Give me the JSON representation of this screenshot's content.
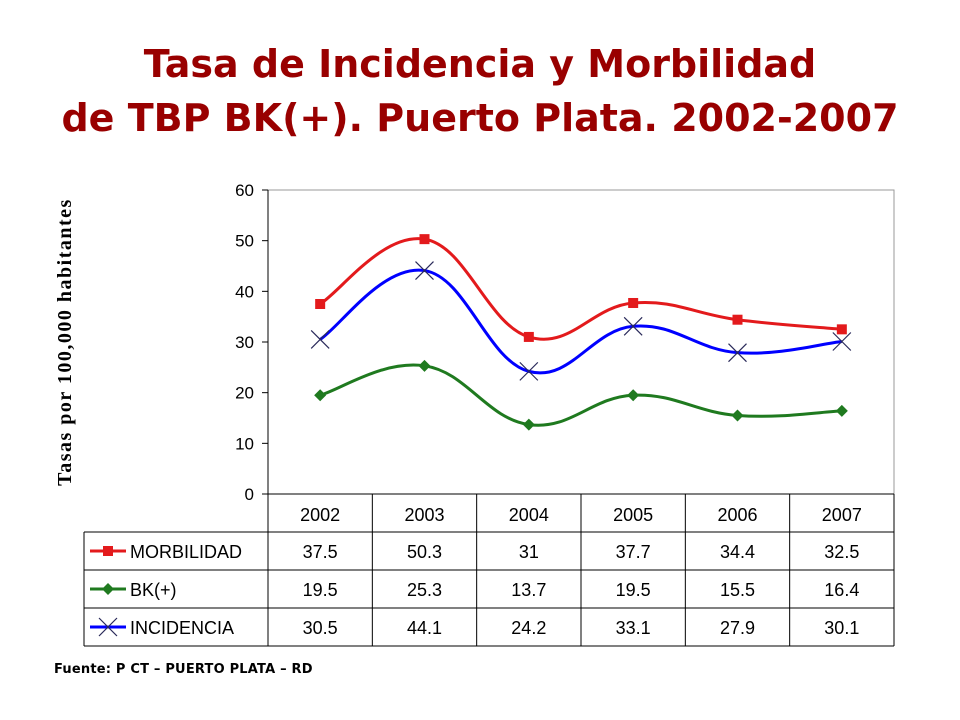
{
  "title_line1": "Tasa de Incidencia y Morbilidad",
  "title_line2": "de TBP BK(+). Puerto Plata. 2002-2007",
  "source": "Fuente: P CT – PUERTO  PLATA – RD",
  "chart_data": {
    "type": "line",
    "ylabel": "Tasas por 100,000 habitantes",
    "xlabel": "",
    "ylim": [
      0,
      60
    ],
    "yticks": [
      0,
      10,
      20,
      30,
      40,
      50,
      60
    ],
    "grid": false,
    "categories": [
      "2002",
      "2003",
      "2004",
      "2005",
      "2006",
      "2007"
    ],
    "series": [
      {
        "name": "MORBILIDAD",
        "values": [
          37.5,
          50.3,
          31,
          37.7,
          34.4,
          32.5
        ],
        "value_labels": [
          "37.5",
          "50.3",
          "31",
          "37.7",
          "34.4",
          "32.5"
        ],
        "color": "#e31a1c",
        "marker": "square"
      },
      {
        "name": "BK(+)",
        "values": [
          19.5,
          25.3,
          13.7,
          19.5,
          15.5,
          16.4
        ],
        "value_labels": [
          "19.5",
          "25.3",
          "13.7",
          "19.5",
          "15.5",
          "16.4"
        ],
        "color": "#1f7a1f",
        "marker": "diamond"
      },
      {
        "name": "INCIDENCIA",
        "values": [
          30.5,
          44.1,
          24.2,
          33.1,
          27.9,
          30.1
        ],
        "value_labels": [
          "30.5",
          "44.1",
          "24.2",
          "33.1",
          "27.9",
          "30.1"
        ],
        "color": "#0000ff",
        "marker": "x"
      }
    ],
    "legend": "data-table-below"
  }
}
